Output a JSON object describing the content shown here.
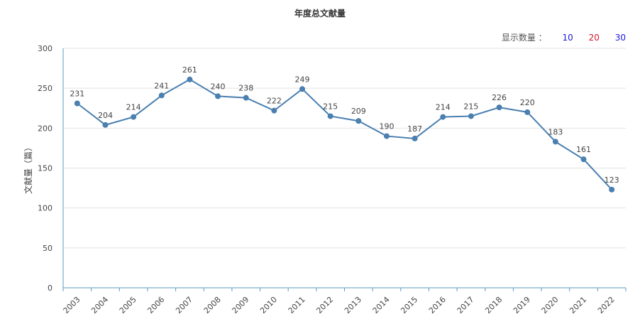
{
  "title": "年度总文献量",
  "count_selector": {
    "label": "显示数量 ：",
    "options": [
      "10",
      "20",
      "30"
    ],
    "colors": [
      "#1a1adb",
      "#d11a2a",
      "#1a1adb"
    ]
  },
  "chart_data": {
    "type": "line",
    "title": "年度总文献量",
    "ylabel": "文献量（篇）",
    "xlabel": "",
    "ylim": [
      0,
      300
    ],
    "yticks": [
      0,
      50,
      100,
      150,
      200,
      250,
      300
    ],
    "grid": true,
    "line_color": "#4a7fb0",
    "x": [
      "2003",
      "2004",
      "2005",
      "2006",
      "2007",
      "2008",
      "2009",
      "2010",
      "2011",
      "2012",
      "2013",
      "2014",
      "2015",
      "2016",
      "2017",
      "2018",
      "2019",
      "2020",
      "2021",
      "2022"
    ],
    "values": [
      231,
      204,
      214,
      241,
      261,
      240,
      238,
      222,
      249,
      215,
      209,
      190,
      187,
      214,
      215,
      226,
      220,
      183,
      161,
      123
    ]
  }
}
